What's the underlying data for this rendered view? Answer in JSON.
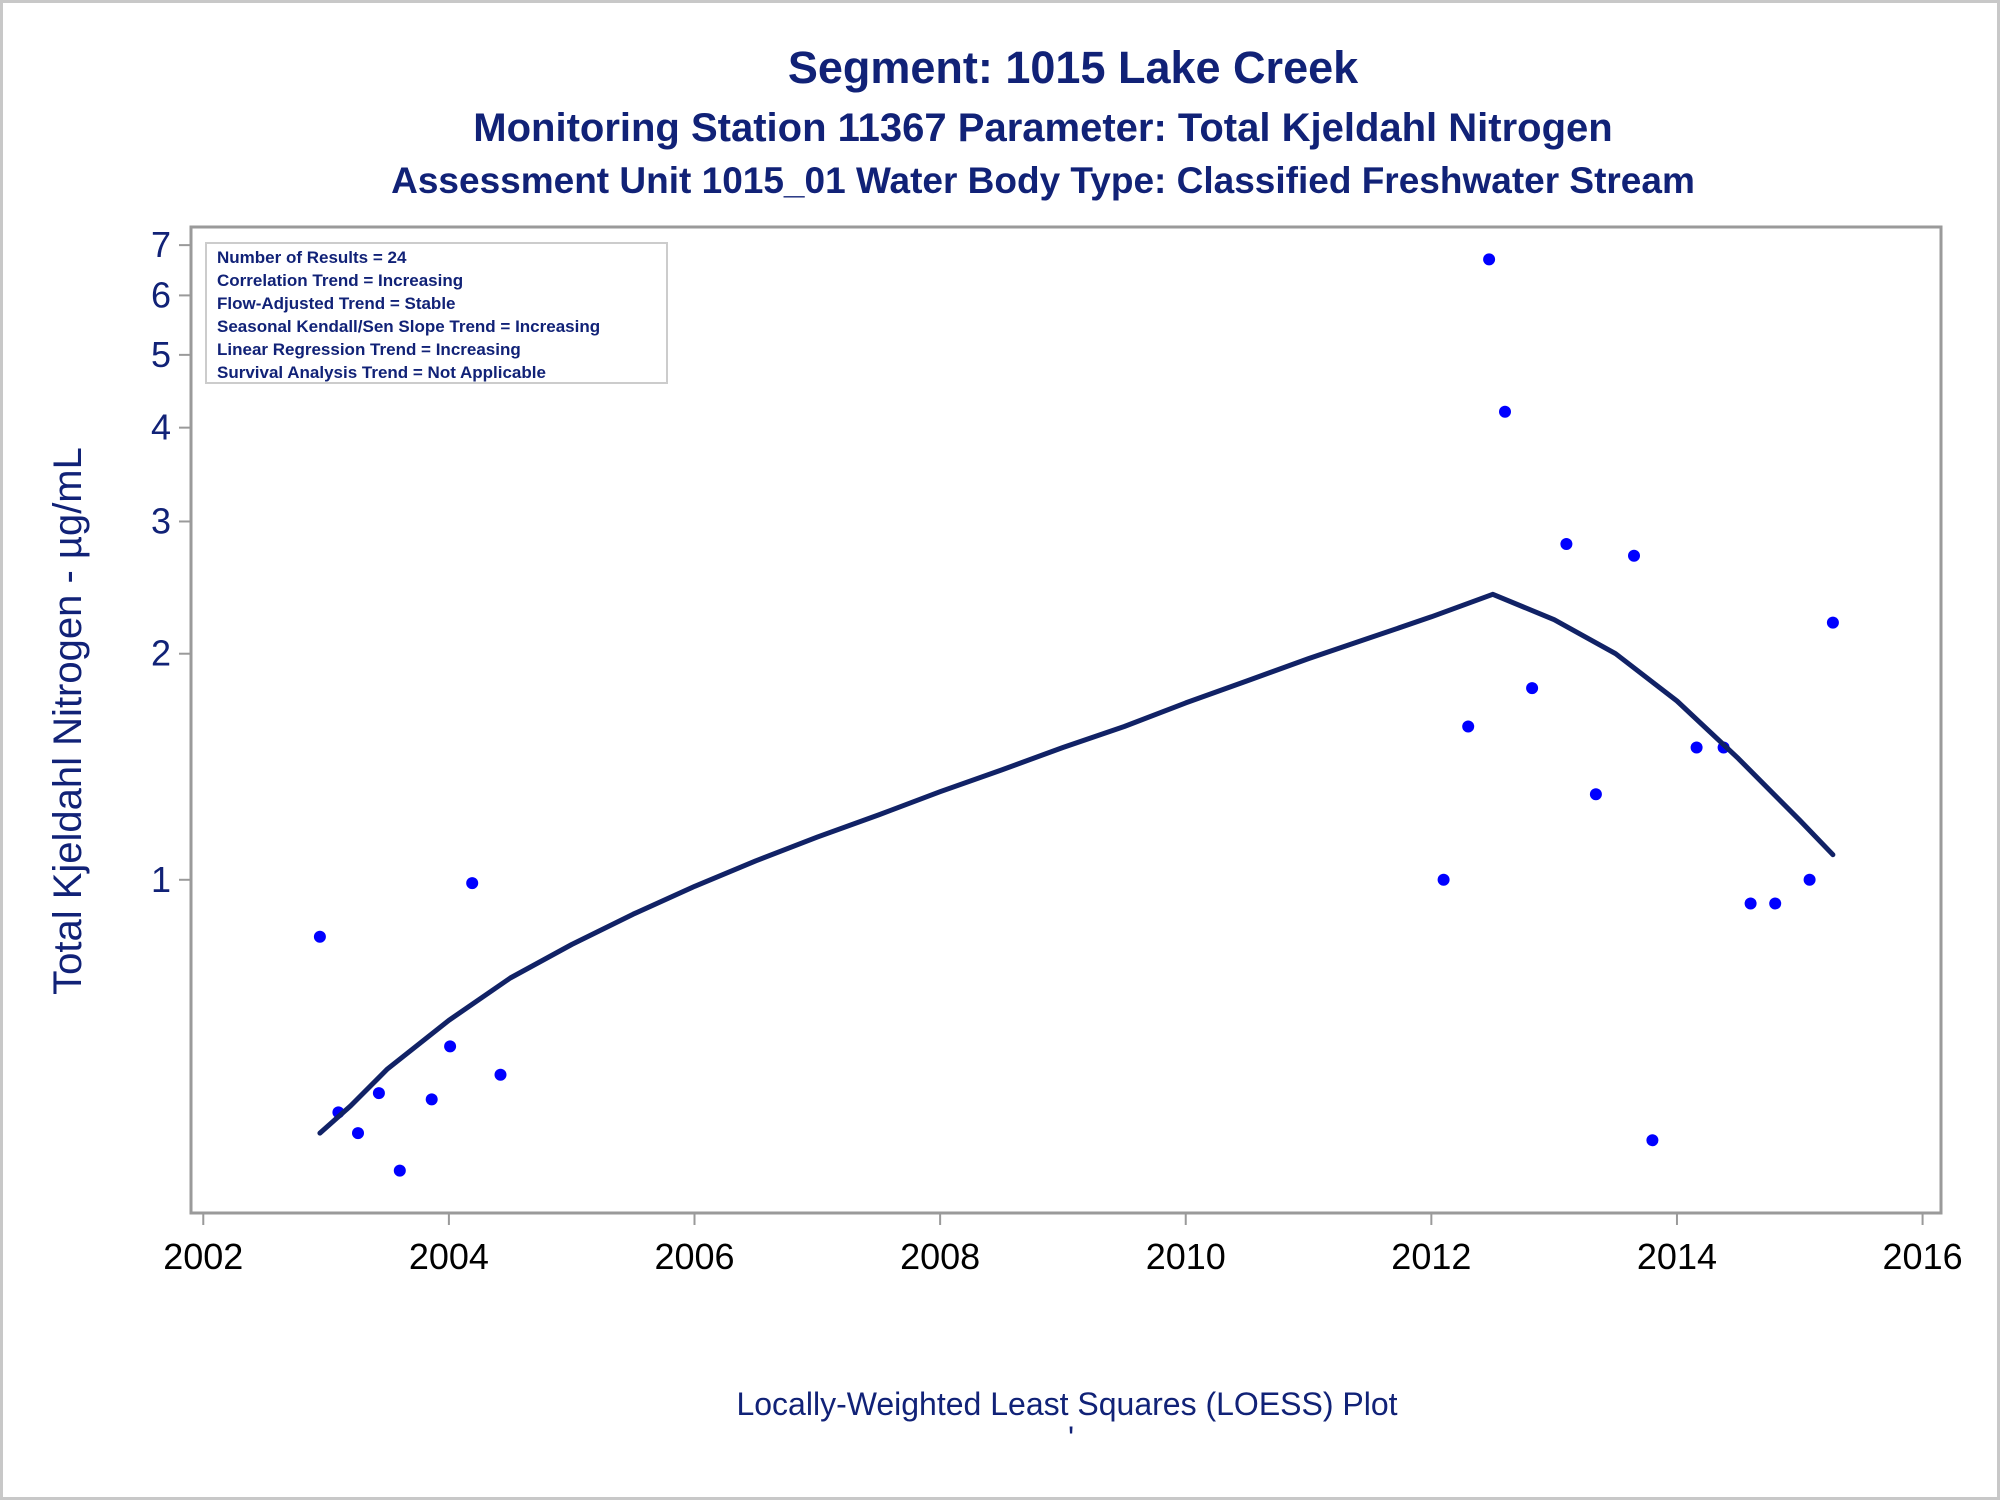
{
  "chart_data": {
    "type": "scatter",
    "title": "Segment: 1015  Lake Creek",
    "subtitle": "Monitoring Station 11367 Parameter: Total Kjeldahl Nitrogen",
    "subtitle2": "Assessment Unit 1015_01   Water Body Type: Classified Freshwater Stream",
    "xlabel": "Locally-Weighted Least Squares (LOESS) Plot",
    "ylabel": "Total Kjeldahl Nitrogen -  µg/mL",
    "footnote_mark": "'",
    "x_scale": "linear",
    "y_scale": "log",
    "xlim": [
      2001.9,
      2016.15
    ],
    "ylim": [
      0.36,
      7.4
    ],
    "xticks": [
      2002,
      2004,
      2006,
      2008,
      2010,
      2012,
      2014,
      2016
    ],
    "yticks": [
      1,
      2,
      3,
      4,
      5,
      6,
      7
    ],
    "grid": false,
    "stats_box": {
      "placement": "top-left",
      "lines": [
        "Number of Results = 24",
        "Correlation Trend = Increasing",
        "Flow-Adjusted Trend = Stable",
        "Seasonal Kendall/Sen Slope Trend = Increasing",
        "Linear Regression Trend = Increasing",
        "Survival Analysis Trend = Not Applicable"
      ]
    },
    "series": [
      {
        "kind": "points",
        "color": "#0000ff",
        "points": [
          [
            2002.95,
            0.84
          ],
          [
            2003.1,
            0.49
          ],
          [
            2003.26,
            0.46
          ],
          [
            2003.43,
            0.52
          ],
          [
            2003.6,
            0.41
          ],
          [
            2003.86,
            0.51
          ],
          [
            2004.01,
            0.6
          ],
          [
            2004.19,
            0.99
          ],
          [
            2004.42,
            0.55
          ],
          [
            2012.1,
            1.0
          ],
          [
            2012.3,
            1.6
          ],
          [
            2012.47,
            6.7
          ],
          [
            2012.6,
            4.2
          ],
          [
            2012.82,
            1.8
          ],
          [
            2013.1,
            2.8
          ],
          [
            2013.34,
            1.3
          ],
          [
            2013.65,
            2.7
          ],
          [
            2013.8,
            0.45
          ],
          [
            2014.16,
            1.5
          ],
          [
            2014.38,
            1.5
          ],
          [
            2014.6,
            0.93
          ],
          [
            2014.8,
            0.93
          ],
          [
            2015.08,
            1.0
          ],
          [
            2015.27,
            2.2
          ]
        ]
      },
      {
        "kind": "loess",
        "color": "#112266",
        "points": [
          [
            2002.95,
            0.46
          ],
          [
            2003.2,
            0.5
          ],
          [
            2003.5,
            0.56
          ],
          [
            2004.0,
            0.65
          ],
          [
            2004.5,
            0.74
          ],
          [
            2005.0,
            0.82
          ],
          [
            2005.5,
            0.9
          ],
          [
            2006.0,
            0.98
          ],
          [
            2006.5,
            1.06
          ],
          [
            2007.0,
            1.14
          ],
          [
            2007.5,
            1.22
          ],
          [
            2008.0,
            1.31
          ],
          [
            2008.5,
            1.4
          ],
          [
            2009.0,
            1.5
          ],
          [
            2009.5,
            1.6
          ],
          [
            2010.0,
            1.72
          ],
          [
            2010.5,
            1.84
          ],
          [
            2011.0,
            1.97
          ],
          [
            2011.5,
            2.1
          ],
          [
            2012.0,
            2.24
          ],
          [
            2012.5,
            2.4
          ],
          [
            2013.0,
            2.22
          ],
          [
            2013.5,
            2.0
          ],
          [
            2014.0,
            1.73
          ],
          [
            2014.5,
            1.45
          ],
          [
            2015.0,
            1.2
          ],
          [
            2015.27,
            1.08
          ]
        ]
      }
    ]
  }
}
